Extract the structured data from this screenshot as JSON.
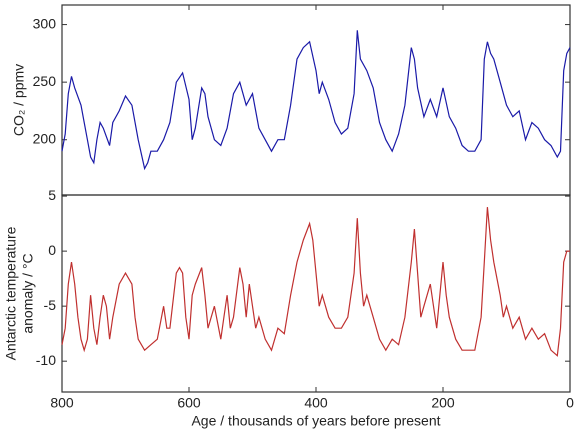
{
  "chart_data": [
    {
      "type": "line",
      "ylabel": "CO₂ / ppmv",
      "xlim": [
        800,
        0
      ],
      "ylim": [
        152,
        317
      ],
      "yticks": [
        200,
        250,
        300
      ],
      "x": [
        800,
        795,
        790,
        785,
        780,
        770,
        765,
        760,
        755,
        750,
        745,
        740,
        735,
        725,
        720,
        710,
        700,
        690,
        680,
        670,
        665,
        660,
        650,
        640,
        630,
        620,
        610,
        600,
        595,
        590,
        580,
        575,
        570,
        560,
        550,
        540,
        530,
        520,
        510,
        500,
        490,
        480,
        470,
        460,
        450,
        440,
        430,
        420,
        410,
        400,
        395,
        390,
        380,
        370,
        360,
        350,
        340,
        335,
        330,
        320,
        310,
        300,
        290,
        280,
        270,
        260,
        250,
        245,
        240,
        230,
        220,
        210,
        200,
        190,
        180,
        170,
        160,
        150,
        140,
        135,
        130,
        125,
        120,
        110,
        100,
        90,
        80,
        70,
        60,
        50,
        40,
        30,
        20,
        15,
        10,
        5,
        0
      ],
      "series": [
        {
          "color": "#1a1aa8",
          "values": [
            190,
            205,
            240,
            255,
            245,
            230,
            215,
            200,
            185,
            180,
            200,
            215,
            210,
            195,
            215,
            225,
            238,
            230,
            200,
            175,
            180,
            190,
            190,
            200,
            215,
            250,
            258,
            235,
            200,
            210,
            245,
            240,
            220,
            200,
            195,
            210,
            240,
            250,
            230,
            240,
            210,
            200,
            190,
            200,
            200,
            230,
            270,
            280,
            285,
            260,
            240,
            250,
            235,
            215,
            205,
            210,
            240,
            295,
            270,
            260,
            245,
            215,
            200,
            190,
            205,
            230,
            280,
            270,
            245,
            220,
            235,
            220,
            245,
            220,
            210,
            195,
            190,
            190,
            200,
            270,
            285,
            275,
            270,
            250,
            230,
            220,
            225,
            200,
            215,
            210,
            200,
            195,
            185,
            190,
            260,
            275,
            280
          ]
        }
      ]
    },
    {
      "type": "line",
      "ylabel": [
        "Antarctic temperature",
        "anomaly / °C"
      ],
      "xlabel": "Age / thousands of years before present",
      "xlim": [
        800,
        0
      ],
      "xticks": [
        800,
        600,
        400,
        200,
        0
      ],
      "ylim": [
        -12.8,
        5.1
      ],
      "yticks": [
        5,
        0,
        -5,
        -10
      ],
      "x": [
        800,
        795,
        790,
        785,
        780,
        775,
        770,
        765,
        760,
        755,
        750,
        745,
        740,
        735,
        730,
        725,
        720,
        710,
        700,
        690,
        685,
        680,
        670,
        660,
        650,
        640,
        635,
        630,
        620,
        615,
        610,
        605,
        600,
        595,
        590,
        580,
        575,
        570,
        560,
        550,
        545,
        540,
        535,
        530,
        520,
        515,
        510,
        505,
        500,
        495,
        490,
        480,
        470,
        460,
        450,
        440,
        430,
        420,
        410,
        405,
        400,
        395,
        390,
        380,
        370,
        360,
        350,
        340,
        335,
        330,
        325,
        320,
        310,
        300,
        290,
        280,
        270,
        260,
        250,
        245,
        240,
        235,
        230,
        220,
        215,
        210,
        200,
        195,
        190,
        180,
        170,
        160,
        150,
        140,
        135,
        130,
        125,
        120,
        110,
        105,
        100,
        90,
        80,
        70,
        60,
        50,
        40,
        30,
        20,
        15,
        10,
        5,
        0
      ],
      "series": [
        {
          "color": "#c0302f",
          "values": [
            -8.5,
            -7,
            -3,
            -1,
            -3,
            -6,
            -8,
            -9,
            -8,
            -4,
            -7,
            -8.5,
            -6,
            -4,
            -5,
            -8,
            -6,
            -3,
            -2,
            -3,
            -6,
            -8,
            -9,
            -8.5,
            -8,
            -5,
            -7,
            -7,
            -2,
            -1.5,
            -2,
            -6,
            -8,
            -4,
            -3,
            -1.5,
            -4,
            -7,
            -5,
            -8,
            -6,
            -4,
            -7,
            -6,
            -1.5,
            -3,
            -6,
            -3,
            -5,
            -7,
            -6,
            -8,
            -9,
            -7,
            -7.5,
            -4,
            -1,
            1,
            2.5,
            1,
            -2,
            -5,
            -4,
            -6,
            -7,
            -7,
            -6,
            -2,
            3,
            -2,
            -5,
            -4,
            -6,
            -8,
            -9,
            -8,
            -8.5,
            -6,
            -1,
            2,
            -2,
            -6,
            -5,
            -3,
            -5,
            -7,
            -1,
            -4,
            -6,
            -8,
            -9,
            -9,
            -9,
            -6,
            -1,
            4,
            1,
            -1,
            -4,
            -6,
            -5,
            -7,
            -6,
            -8,
            -7,
            -8,
            -7.5,
            -9,
            -9.5,
            -7,
            -1,
            0,
            0
          ]
        }
      ]
    }
  ]
}
